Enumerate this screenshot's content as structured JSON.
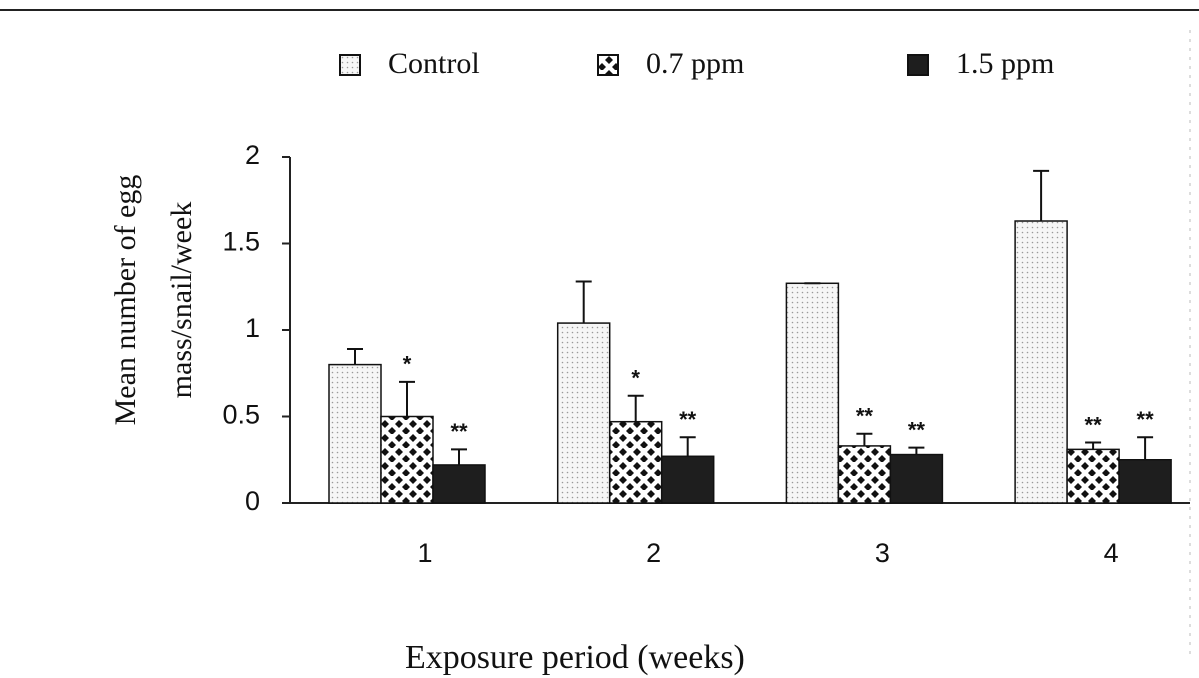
{
  "chart_data": {
    "type": "bar",
    "ylabel": [
      "Mean number of egg",
      "mass/snail/week"
    ],
    "xlabel": "Exposure period (weeks)",
    "categories": [
      "1",
      "2",
      "3",
      "4"
    ],
    "series": [
      {
        "name": "Control",
        "color": "#f4f4f4",
        "pattern": "dots",
        "values": [
          0.8,
          1.04,
          1.27,
          1.63
        ],
        "errors": [
          0.09,
          0.24,
          0.0,
          0.29
        ]
      },
      {
        "name": "0.7 ppm",
        "color": "#1a1a1a",
        "pattern": "checker",
        "values": [
          0.5,
          0.47,
          0.33,
          0.31
        ],
        "errors": [
          0.2,
          0.15,
          0.07,
          0.04
        ],
        "annotations": [
          "*",
          "*",
          "**",
          "**"
        ]
      },
      {
        "name": "1.5 ppm",
        "color": "#1e1e1e",
        "pattern": "solid",
        "values": [
          0.22,
          0.27,
          0.28,
          0.25
        ],
        "errors": [
          0.09,
          0.11,
          0.04,
          0.13
        ],
        "annotations": [
          "**",
          "**",
          "**",
          "**"
        ]
      }
    ],
    "ylim": [
      0,
      2
    ],
    "yticks": [
      0,
      0.5,
      1,
      1.5,
      2
    ]
  }
}
